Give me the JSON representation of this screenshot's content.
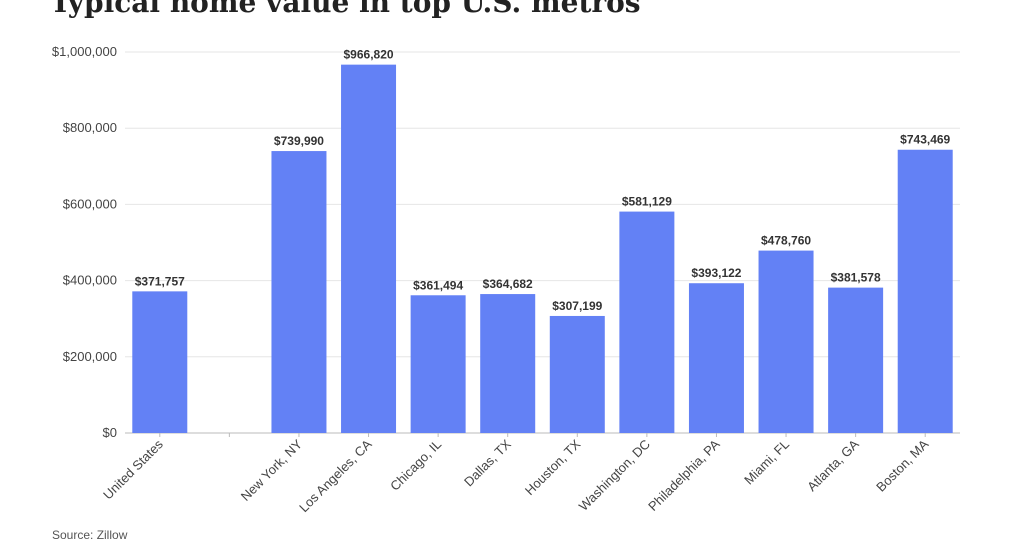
{
  "chart_data": {
    "type": "bar",
    "title": "Typical home value in top U.S. metros",
    "source": "Source: Zillow",
    "categories": [
      "United States",
      "",
      "New York, NY",
      "Los Angeles, CA",
      "Chicago, IL",
      "Dallas, TX",
      "Houston, TX",
      "Washington, DC",
      "Philadelphia, PA",
      "Miami, FL",
      "Atlanta, GA",
      "Boston, MA"
    ],
    "values": [
      371757,
      null,
      739990,
      966820,
      361494,
      364682,
      307199,
      581129,
      393122,
      478760,
      381578,
      743469
    ],
    "data_labels": [
      "$371,757",
      "",
      "$739,990",
      "$966,820",
      "$361,494",
      "$364,682",
      "$307,199",
      "$581,129",
      "$393,122",
      "$478,760",
      "$381,578",
      "$743,469"
    ],
    "ylim": [
      0,
      1000000
    ],
    "yticks": [
      0,
      200000,
      400000,
      600000,
      800000,
      1000000
    ],
    "ytick_labels": [
      "$0",
      "$200,000",
      "$400,000",
      "$600,000",
      "$800,000",
      "$1,000,000"
    ],
    "xlabel": "",
    "ylabel": "",
    "grid": true,
    "bar_color": "#6381f5",
    "grid_color": "#e6e6e6"
  }
}
